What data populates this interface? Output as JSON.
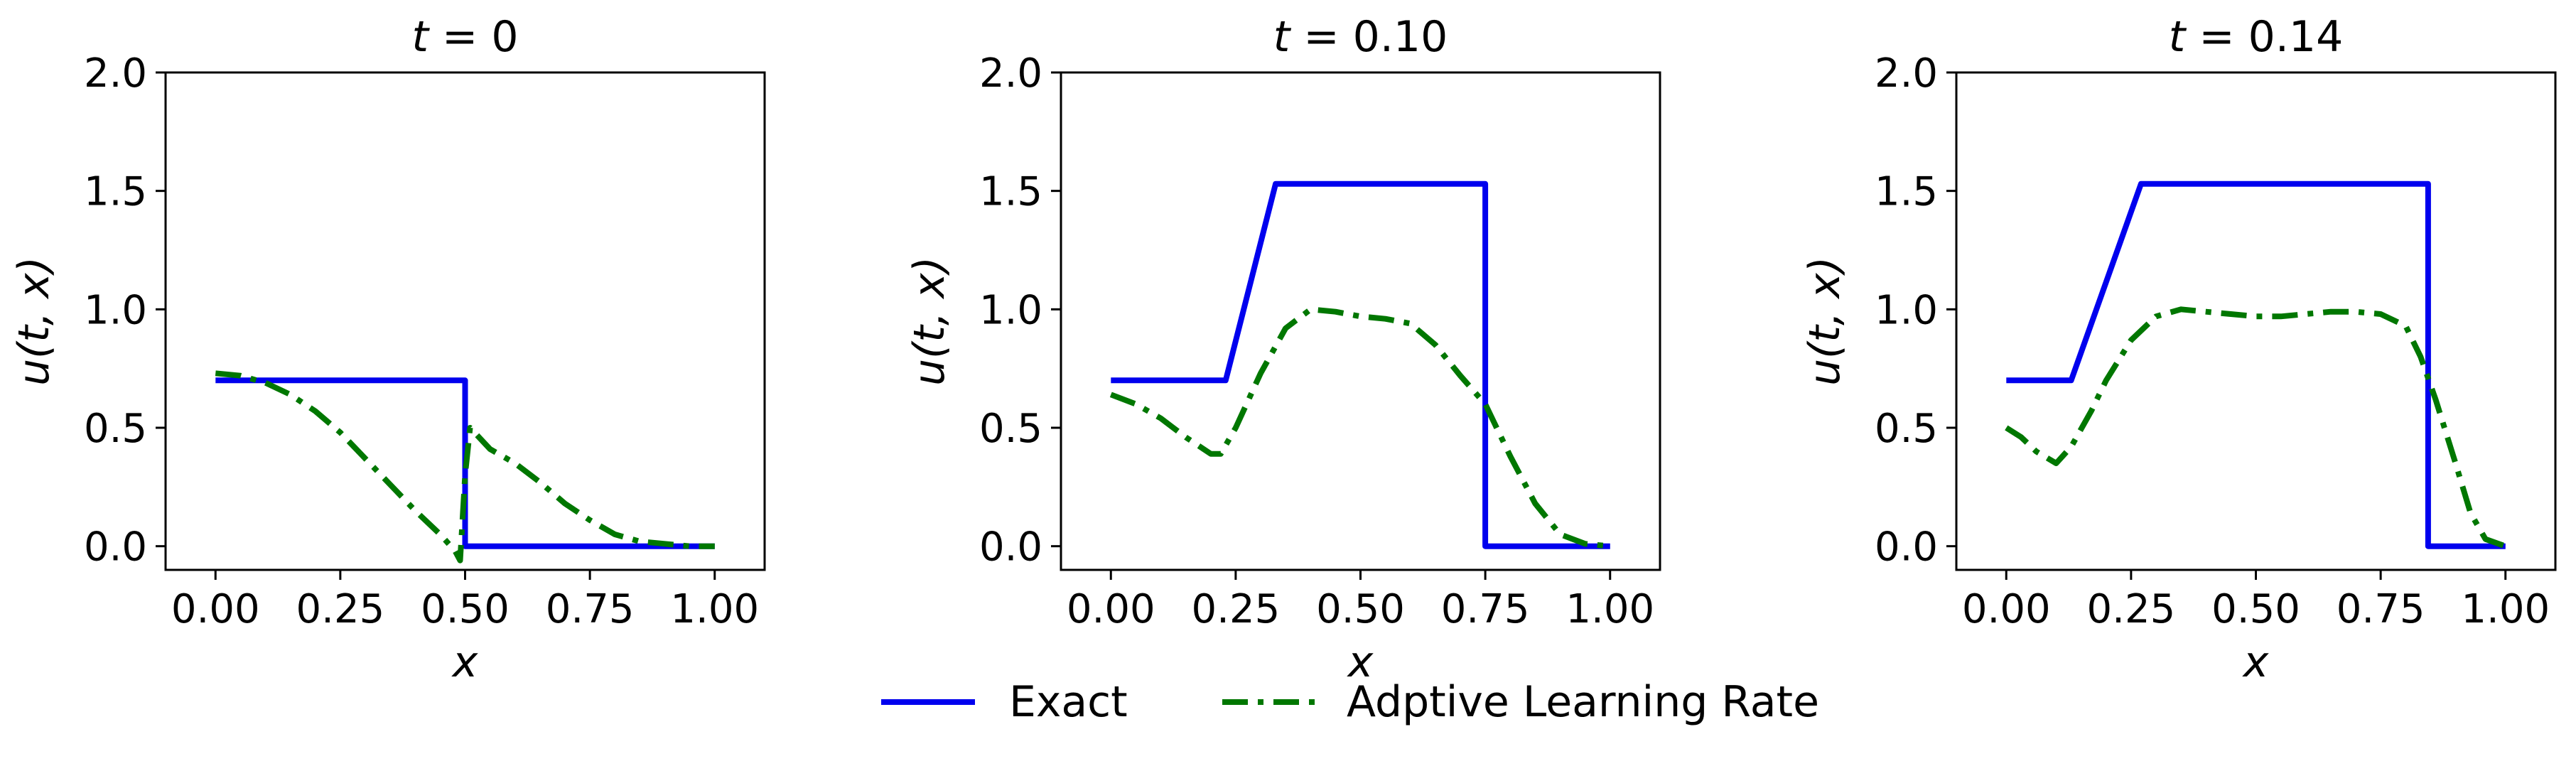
{
  "chart_data": [
    {
      "type": "line",
      "title": "t = 0",
      "title_var": "t",
      "title_value": "0",
      "xlabel": "x",
      "ylabel": "u(t, x)",
      "xlim": [
        -0.1,
        1.1
      ],
      "ylim": [
        -0.1,
        2.0
      ],
      "xticks": [
        "0.00",
        "0.25",
        "0.50",
        "0.75",
        "1.00"
      ],
      "yticks": [
        "0.0",
        "0.5",
        "1.0",
        "1.5",
        "2.0"
      ],
      "series": [
        {
          "name": "Exact",
          "color": "#0000ee",
          "style": "solid",
          "x": [
            0.0,
            0.5,
            0.5,
            1.0
          ],
          "y": [
            0.7,
            0.7,
            0.0,
            0.0
          ]
        },
        {
          "name": "Adptive Learning Rate",
          "color": "#007700",
          "style": "dashdot",
          "x": [
            0.0,
            0.05,
            0.1,
            0.15,
            0.2,
            0.25,
            0.3,
            0.35,
            0.4,
            0.45,
            0.48,
            0.49,
            0.5,
            0.51,
            0.55,
            0.6,
            0.65,
            0.7,
            0.75,
            0.8,
            0.85,
            0.9,
            0.95,
            1.0
          ],
          "y": [
            0.73,
            0.72,
            0.69,
            0.64,
            0.57,
            0.48,
            0.37,
            0.26,
            0.15,
            0.05,
            -0.02,
            -0.06,
            0.3,
            0.5,
            0.41,
            0.35,
            0.27,
            0.18,
            0.11,
            0.05,
            0.02,
            0.01,
            0.0,
            0.0
          ]
        }
      ]
    },
    {
      "type": "line",
      "title": "t = 0.10",
      "title_var": "t",
      "title_value": "0.10",
      "xlabel": "x",
      "ylabel": "u(t, x)",
      "xlim": [
        -0.1,
        1.1
      ],
      "ylim": [
        -0.1,
        2.0
      ],
      "xticks": [
        "0.00",
        "0.25",
        "0.50",
        "0.75",
        "1.00"
      ],
      "yticks": [
        "0.0",
        "0.5",
        "1.0",
        "1.5",
        "2.0"
      ],
      "series": [
        {
          "name": "Exact",
          "color": "#0000ee",
          "style": "solid",
          "x": [
            0.0,
            0.23,
            0.33,
            0.75,
            0.75,
            1.0
          ],
          "y": [
            0.7,
            0.7,
            1.53,
            1.53,
            0.0,
            0.0
          ]
        },
        {
          "name": "Adptive Learning Rate",
          "color": "#007700",
          "style": "dashdot",
          "x": [
            0.0,
            0.05,
            0.1,
            0.15,
            0.2,
            0.22,
            0.25,
            0.3,
            0.35,
            0.4,
            0.45,
            0.5,
            0.55,
            0.6,
            0.65,
            0.7,
            0.75,
            0.8,
            0.85,
            0.9,
            0.95,
            1.0
          ],
          "y": [
            0.64,
            0.6,
            0.54,
            0.46,
            0.39,
            0.39,
            0.5,
            0.73,
            0.92,
            1.0,
            0.99,
            0.97,
            0.96,
            0.94,
            0.85,
            0.72,
            0.6,
            0.38,
            0.18,
            0.05,
            0.01,
            0.0
          ]
        }
      ]
    },
    {
      "type": "line",
      "title": "t = 0.14",
      "title_var": "t",
      "title_value": "0.14",
      "xlabel": "x",
      "ylabel": "u(t, x)",
      "xlim": [
        -0.1,
        1.1
      ],
      "ylim": [
        -0.1,
        2.0
      ],
      "xticks": [
        "0.00",
        "0.25",
        "0.50",
        "0.75",
        "1.00"
      ],
      "yticks": [
        "0.0",
        "0.5",
        "1.0",
        "1.5",
        "2.0"
      ],
      "series": [
        {
          "name": "Exact",
          "color": "#0000ee",
          "style": "solid",
          "x": [
            0.0,
            0.13,
            0.27,
            0.845,
            0.845,
            1.0
          ],
          "y": [
            0.7,
            0.7,
            1.53,
            1.53,
            0.0,
            0.0
          ]
        },
        {
          "name": "Adptive Learning Rate",
          "color": "#007700",
          "style": "dashdot",
          "x": [
            0.0,
            0.03,
            0.06,
            0.1,
            0.13,
            0.17,
            0.2,
            0.25,
            0.3,
            0.35,
            0.4,
            0.45,
            0.5,
            0.55,
            0.6,
            0.65,
            0.7,
            0.75,
            0.8,
            0.83,
            0.86,
            0.9,
            0.93,
            0.96,
            1.0
          ],
          "y": [
            0.5,
            0.46,
            0.4,
            0.35,
            0.42,
            0.57,
            0.7,
            0.87,
            0.97,
            1.0,
            0.99,
            0.98,
            0.97,
            0.97,
            0.98,
            0.99,
            0.99,
            0.98,
            0.93,
            0.8,
            0.62,
            0.35,
            0.14,
            0.03,
            0.0
          ]
        }
      ]
    }
  ],
  "legend": {
    "position": "bottom-center",
    "entries": [
      {
        "label": "Exact",
        "color": "#0000ee",
        "style": "solid"
      },
      {
        "label": "Adptive Learning Rate",
        "color": "#007700",
        "style": "dashdot"
      }
    ]
  }
}
